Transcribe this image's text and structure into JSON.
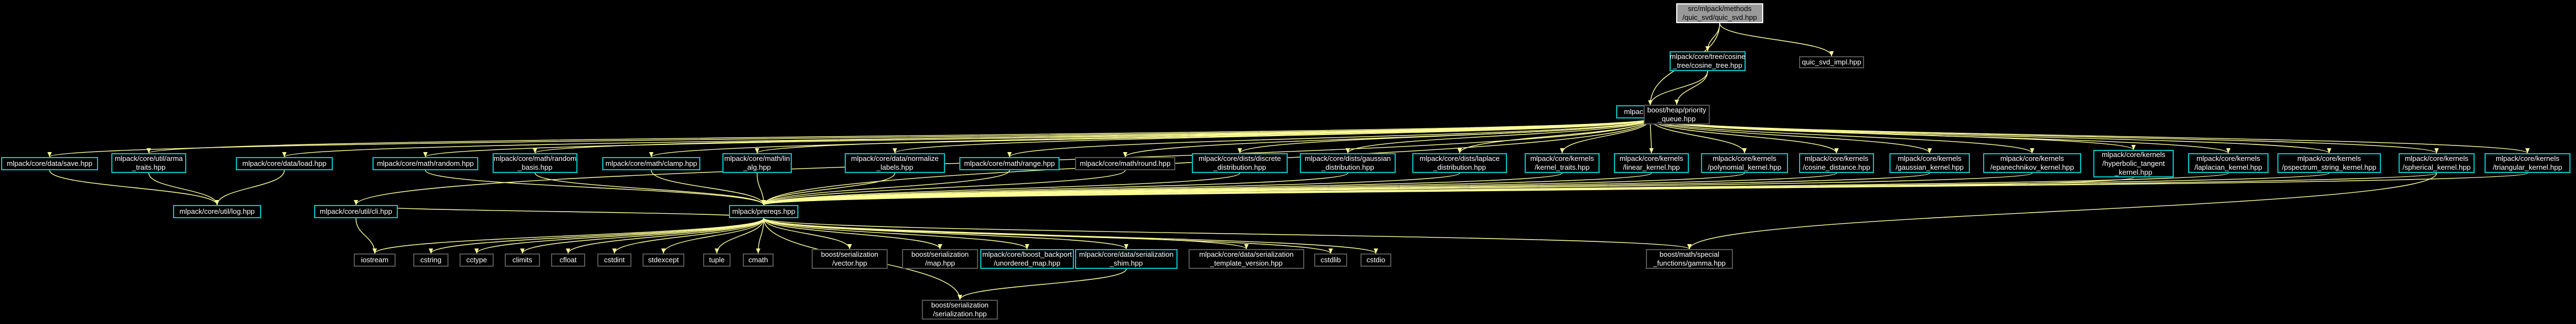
{
  "graph": {
    "nodes": [
      {
        "id": "root",
        "label": "src/mlpack/methods\n/quic_svd/quic_svd.hpp",
        "style": "root"
      },
      {
        "id": "cosine_tree",
        "label": "mlpack/core/tree/cosine\n_tree/cosine_tree.hpp",
        "style": "linked"
      },
      {
        "id": "quic_impl",
        "label": "quic_svd_impl.hpp",
        "style": "plain"
      },
      {
        "id": "core",
        "label": "mlpack/core.hpp",
        "style": "linked"
      },
      {
        "id": "boost_heap",
        "label": "boost/heap/priority\n_queue.hpp",
        "style": "plain"
      },
      {
        "id": "save",
        "label": "mlpack/core/data/save.hpp",
        "style": "linked"
      },
      {
        "id": "arma_traits",
        "label": "mlpack/core/util/arma\n_traits.hpp",
        "style": "linked"
      },
      {
        "id": "load",
        "label": "mlpack/core/data/load.hpp",
        "style": "linked"
      },
      {
        "id": "random",
        "label": "mlpack/core/math/random.hpp",
        "style": "linked"
      },
      {
        "id": "random_basis",
        "label": "mlpack/core/math/random\n_basis.hpp",
        "style": "linked"
      },
      {
        "id": "clamp",
        "label": "mlpack/core/math/clamp.hpp",
        "style": "linked"
      },
      {
        "id": "lin_alg",
        "label": "mlpack/core/math/lin\n_alg.hpp",
        "style": "linked"
      },
      {
        "id": "normalize",
        "label": "mlpack/core/data/normalize\n_labels.hpp",
        "style": "linked"
      },
      {
        "id": "range",
        "label": "mlpack/core/math/range.hpp",
        "style": "linked"
      },
      {
        "id": "round",
        "label": "mlpack/core/math/round.hpp",
        "style": "plain"
      },
      {
        "id": "discrete",
        "label": "mlpack/core/dists/discrete\n_distribution.hpp",
        "style": "linked"
      },
      {
        "id": "gaussian_dist",
        "label": "mlpack/core/dists/gaussian\n_distribution.hpp",
        "style": "linked"
      },
      {
        "id": "laplace",
        "label": "mlpack/core/dists/laplace\n_distribution.hpp",
        "style": "linked"
      },
      {
        "id": "kernel_traits",
        "label": "mlpack/core/kernels\n/kernel_traits.hpp",
        "style": "linked"
      },
      {
        "id": "linear_kernel",
        "label": "mlpack/core/kernels\n/linear_kernel.hpp",
        "style": "linked"
      },
      {
        "id": "polynomial",
        "label": "mlpack/core/kernels\n/polynomial_kernel.hpp",
        "style": "linked"
      },
      {
        "id": "cosine_dist",
        "label": "mlpack/core/kernels\n/cosine_distance.hpp",
        "style": "linked"
      },
      {
        "id": "gaussian_kernel",
        "label": "mlpack/core/kernels\n/gaussian_kernel.hpp",
        "style": "linked"
      },
      {
        "id": "epanechnikov",
        "label": "mlpack/core/kernels\n/epanechnikov_kernel.hpp",
        "style": "linked"
      },
      {
        "id": "hyperbolic",
        "label": "mlpack/core/kernels\n/hyperbolic_tangent\n_kernel.hpp",
        "style": "linked"
      },
      {
        "id": "laplacian",
        "label": "mlpack/core/kernels\n/laplacian_kernel.hpp",
        "style": "linked"
      },
      {
        "id": "pspectrum",
        "label": "mlpack/core/kernels\n/pspectrum_string_kernel.hpp",
        "style": "linked"
      },
      {
        "id": "spherical",
        "label": "mlpack/core/kernels\n/spherical_kernel.hpp",
        "style": "linked"
      },
      {
        "id": "triangular",
        "label": "mlpack/core/kernels\n/triangular_kernel.hpp",
        "style": "linked"
      },
      {
        "id": "log",
        "label": "mlpack/core/util/log.hpp",
        "style": "linked"
      },
      {
        "id": "cli",
        "label": "mlpack/core/util/cli.hpp",
        "style": "linked"
      },
      {
        "id": "prereqs",
        "label": "mlpack/prereqs.hpp",
        "style": "linked"
      },
      {
        "id": "iostream",
        "label": "iostream",
        "style": "plain"
      },
      {
        "id": "cstring",
        "label": "cstring",
        "style": "plain"
      },
      {
        "id": "cctype",
        "label": "cctype",
        "style": "plain"
      },
      {
        "id": "climits",
        "label": "climits",
        "style": "plain"
      },
      {
        "id": "cfloat",
        "label": "cfloat",
        "style": "plain"
      },
      {
        "id": "cstdint",
        "label": "cstdint",
        "style": "plain"
      },
      {
        "id": "stdexcept",
        "label": "stdexcept",
        "style": "plain"
      },
      {
        "id": "tuple",
        "label": "tuple",
        "style": "plain"
      },
      {
        "id": "cmath",
        "label": "cmath",
        "style": "plain"
      },
      {
        "id": "boost_vector",
        "label": "boost/serialization\n/vector.hpp",
        "style": "plain"
      },
      {
        "id": "boost_map",
        "label": "boost/serialization\n/map.hpp",
        "style": "plain"
      },
      {
        "id": "unordered_map",
        "label": "mlpack/core/boost_backport\n/unordered_map.hpp",
        "style": "linked"
      },
      {
        "id": "serialization_shim",
        "label": "mlpack/core/data/serialization\n_shim.hpp",
        "style": "linked"
      },
      {
        "id": "template_version",
        "label": "mlpack/core/data/serialization\n_template_version.hpp",
        "style": "plain"
      },
      {
        "id": "cstdlib",
        "label": "cstdlib",
        "style": "plain"
      },
      {
        "id": "cstdio",
        "label": "cstdio",
        "style": "plain"
      },
      {
        "id": "gamma",
        "label": "boost/math/special\n_functions/gamma.hpp",
        "style": "plain"
      },
      {
        "id": "boost_serialization",
        "label": "boost/serialization\n/serialization.hpp",
        "style": "plain"
      }
    ],
    "edges": [
      [
        "root",
        "cosine_tree"
      ],
      [
        "root",
        "quic_impl"
      ],
      [
        "root",
        "core"
      ],
      [
        "cosine_tree",
        "core"
      ],
      [
        "cosine_tree",
        "boost_heap"
      ],
      [
        "core",
        "save"
      ],
      [
        "core",
        "arma_traits"
      ],
      [
        "core",
        "load"
      ],
      [
        "core",
        "random"
      ],
      [
        "core",
        "random_basis"
      ],
      [
        "core",
        "clamp"
      ],
      [
        "core",
        "lin_alg"
      ],
      [
        "core",
        "normalize"
      ],
      [
        "core",
        "range"
      ],
      [
        "core",
        "round"
      ],
      [
        "core",
        "discrete"
      ],
      [
        "core",
        "gaussian_dist"
      ],
      [
        "core",
        "laplace"
      ],
      [
        "core",
        "kernel_traits"
      ],
      [
        "core",
        "linear_kernel"
      ],
      [
        "core",
        "polynomial"
      ],
      [
        "core",
        "cosine_dist"
      ],
      [
        "core",
        "gaussian_kernel"
      ],
      [
        "core",
        "epanechnikov"
      ],
      [
        "core",
        "hyperbolic"
      ],
      [
        "core",
        "laplacian"
      ],
      [
        "core",
        "pspectrum"
      ],
      [
        "core",
        "spherical"
      ],
      [
        "core",
        "triangular"
      ],
      [
        "core",
        "cli"
      ],
      [
        "core",
        "prereqs"
      ],
      [
        "save",
        "log"
      ],
      [
        "arma_traits",
        "log"
      ],
      [
        "load",
        "log"
      ],
      [
        "random",
        "prereqs"
      ],
      [
        "random_basis",
        "prereqs"
      ],
      [
        "clamp",
        "prereqs"
      ],
      [
        "lin_alg",
        "prereqs"
      ],
      [
        "normalize",
        "prereqs"
      ],
      [
        "range",
        "prereqs"
      ],
      [
        "round",
        "prereqs"
      ],
      [
        "discrete",
        "prereqs"
      ],
      [
        "gaussian_dist",
        "prereqs"
      ],
      [
        "laplace",
        "prereqs"
      ],
      [
        "kernel_traits",
        "prereqs"
      ],
      [
        "linear_kernel",
        "prereqs"
      ],
      [
        "polynomial",
        "prereqs"
      ],
      [
        "cosine_dist",
        "prereqs"
      ],
      [
        "gaussian_kernel",
        "prereqs"
      ],
      [
        "epanechnikov",
        "prereqs"
      ],
      [
        "hyperbolic",
        "prereqs"
      ],
      [
        "laplacian",
        "prereqs"
      ],
      [
        "pspectrum",
        "prereqs"
      ],
      [
        "spherical",
        "prereqs"
      ],
      [
        "triangular",
        "prereqs"
      ],
      [
        "spherical",
        "gamma"
      ],
      [
        "cli",
        "iostream"
      ],
      [
        "cli",
        "prereqs"
      ],
      [
        "prereqs",
        "iostream"
      ],
      [
        "prereqs",
        "cstring"
      ],
      [
        "prereqs",
        "cctype"
      ],
      [
        "prereqs",
        "climits"
      ],
      [
        "prereqs",
        "cfloat"
      ],
      [
        "prereqs",
        "cstdint"
      ],
      [
        "prereqs",
        "stdexcept"
      ],
      [
        "prereqs",
        "tuple"
      ],
      [
        "prereqs",
        "cmath"
      ],
      [
        "prereqs",
        "boost_vector"
      ],
      [
        "prereqs",
        "boost_map"
      ],
      [
        "prereqs",
        "unordered_map"
      ],
      [
        "prereqs",
        "serialization_shim"
      ],
      [
        "prereqs",
        "template_version"
      ],
      [
        "prereqs",
        "cstdlib"
      ],
      [
        "prereqs",
        "cstdio"
      ],
      [
        "prereqs",
        "gamma"
      ],
      [
        "prereqs",
        "boost_serialization"
      ],
      [
        "serialization_shim",
        "boost_serialization"
      ]
    ]
  },
  "colors": {
    "background": "#000000",
    "edge": "#ffff99",
    "linked_border": "#00c8c8",
    "plain_border": "#555555",
    "root_fill": "#9a9a9a"
  }
}
